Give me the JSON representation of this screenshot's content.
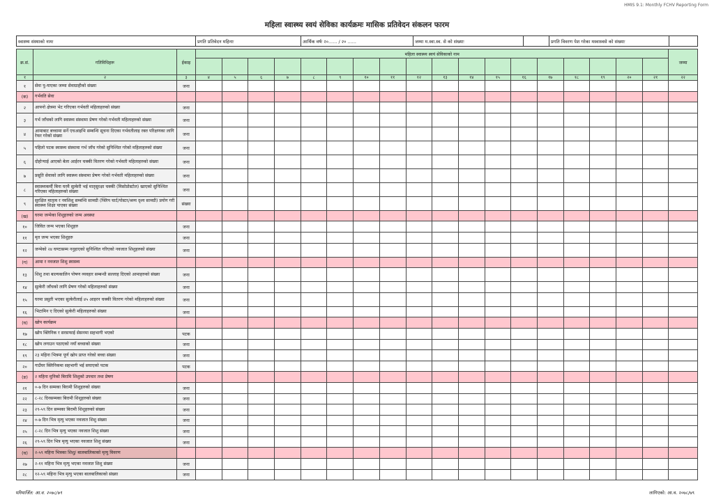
{
  "form_code": "HMIS 9.1: Monthly FCHV Reporting Form",
  "title": "महिला स्वास्थ्य स्वयं सेविका कार्यक्रमः मासिक प्रतिवेदन संकलन फारम",
  "info": {
    "facility_name": "स्वास्थ्य संस्थाको नामः",
    "report_month": "प्रगति प्रतिवेदन महिनाः",
    "fiscal_year": "आर्थिक वर्षः २०...... / २० ......",
    "total_fchv": "जम्मा म.स्वा.स्व. से को संख्याः",
    "reporting_fchv": "प्रगति विवरण पेश गरेका मस्वास्वसे को संख्याः"
  },
  "header": {
    "sn": "क्र.सं.",
    "activities": "गतिविधिहरू",
    "unit": "ईकाइ",
    "fchv_names": "महिला स्वास्थ्य स्वयं सेविकाको नाम",
    "total": "जम्मा",
    "col_numbers": [
      "१",
      "२",
      "३",
      "४",
      "५",
      "६",
      "७",
      "८",
      "९",
      "१०",
      "११",
      "१२",
      "१३",
      "१४",
      "१५",
      "१६",
      "१७",
      "१८",
      "१९",
      "२०",
      "२१",
      "२२"
    ]
  },
  "rows": [
    {
      "sn": "१",
      "activity": "सेवा पु-याएका जम्मा सेवाग्राहीको संख्या",
      "unit": "जना"
    },
    {
      "sn": "(क)",
      "activity": "गर्भवति सेवा",
      "section": true
    },
    {
      "sn": "२",
      "activity": "आफ्नो क्षेत्रमा भेट गरिएका गर्भवती महिलाहरुको संख्या",
      "unit": "जना"
    },
    {
      "sn": "३",
      "activity": "गर्भ जाँचको लागि स्वास्थ्य संस्थामा प्रेषण गरेको गर्भवती महिलाहरुको संख्या",
      "unit": "जना",
      "tall": true
    },
    {
      "sn": "४",
      "activity": "आमाबाट बच्चामा सर्ने एचआइभि सम्बन्धि सूचना दिएका गर्भवतीलाइ रक्त परिक्षणका लागि रेफर गरेको संख्या",
      "unit": "जना",
      "tall": true
    },
    {
      "sn": "५",
      "activity": "पहिलो पटक स्वास्थ्य संस्थामा गर्भ जाँच गरेको सुनिश्चित गरेको महिलाहरुको संख्या",
      "unit": "जना",
      "tall": true
    },
    {
      "sn": "६",
      "activity": "दोहोऱ्याई आएको बेला आईरन चक्की वितरण गरेको गर्भवती महिलाहरुको संख्या",
      "unit": "जना",
      "tall": true
    },
    {
      "sn": "७",
      "activity": "प्रसूति सेवाको लागि स्वास्थ्य संस्थामा प्रेषण गरेको गर्भवती महिलाहरुको संख्या",
      "unit": "जना",
      "tall": true
    },
    {
      "sn": "८",
      "activity": "स्वास्थ्यकर्मी बिना घरमै सुत्केरी भई मातृसुरक्षा चक्की (मिसोप्रोस्टोल) खाएको सुनिश्चित गरिएका महिलाहरुको संख्या",
      "unit": "जना",
      "tall": true
    },
    {
      "sn": "९",
      "activity": "सुरक्षित मातृत्व र नवशिशु सम्बन्धि सामग्री (फ्लिप चार्ट/पोस्टर/श्रव्य दृश्य सामग्री) प्रयोग गरी स्वास्थ्य शिक्षा पाएका संख्या",
      "unit": "संख्या",
      "tall": true
    },
    {
      "sn": "(ख)",
      "activity": "घरमा जन्मेका शिशुहरुको जन्म अवस्था",
      "section": true
    },
    {
      "sn": "१०",
      "activity": "जिवित जन्म भएका शिशुहरु",
      "unit": "जना"
    },
    {
      "sn": "११",
      "activity": "मृत जन्म भएका शिशुहरु",
      "unit": "जना"
    },
    {
      "sn": "१२",
      "activity": "जन्मेको २४ घण्टासम्म ननुहाएको सुनिश्चित गरिएको नवजात शिशुहरुको संख्या",
      "unit": "जना",
      "tall": true
    },
    {
      "sn": "(ग)",
      "activity": "आमा र नवजात शिशु स्वास्थ्य",
      "section": true
    },
    {
      "sn": "१३",
      "activity": "शिशु तथा बाल्यकालिन पोषण व्यवहार सम्बन्धी सल्लाह दिएको आमाहरुको संख्या",
      "unit": "जना",
      "tall": true
    },
    {
      "sn": "१४",
      "activity": "सुत्केरी जाँचको लागि प्रेषण गरेको महिलाहरुको संख्या",
      "unit": "जना"
    },
    {
      "sn": "१५",
      "activity": "घरमा प्रसुती भएका सुत्केरीलाई ४५ आइरन चक्की वितरण गरेको महिलाहरुको संख्या",
      "unit": "जना",
      "tall": true
    },
    {
      "sn": "१६",
      "activity": "भिटामिन ए दिएको सुत्केरी महिलाहरुको संख्या",
      "unit": "जना"
    },
    {
      "sn": "(घ)",
      "activity": "खोप कार्यक्रम",
      "section": true
    },
    {
      "sn": "१७",
      "activity": "खोप क्लिनिक र सरसफाई सेसनमा सहभागी भएको",
      "unit": "पटक"
    },
    {
      "sn": "१८",
      "activity": "खोप लगाउन पठाएको नयाँ बच्चाको संख्या",
      "unit": "जना"
    },
    {
      "sn": "१९",
      "activity": "२३ महिना भित्रमा पूर्ण खोप प्राप्त गरेको बच्चा संख्या",
      "unit": "जना"
    },
    {
      "sn": "२०",
      "activity": "गाउँघर क्लिनिकमा सहभागी भई सघाएको पटक",
      "unit": "पटक"
    },
    {
      "sn": "(ङ)",
      "activity": "२ महिना मुनिको बिरामि शिशुको उपचार तथा प्रेषण",
      "section": true
    },
    {
      "sn": "२१",
      "activity": "०-७ दिन सम्मका बिरामी शिशुहरुको संख्या",
      "unit": "जना"
    },
    {
      "sn": "२२",
      "activity": "८-२८ दिनसम्मका बिरामी शिशुहरुको संख्या",
      "unit": "जना"
    },
    {
      "sn": "२३",
      "activity": "२९-५९ दिन सम्मका बिरामी शिशुहरुको संख्या",
      "unit": "जना"
    },
    {
      "sn": "२४",
      "activity": "०-७ दिन भित्र मृत्यु भएका नवजात शिशु संख्या",
      "unit": "जना"
    },
    {
      "sn": "२५",
      "activity": "८-२८ दिन भित्र मृत्यु भएका नवजात शिशु संख्या",
      "unit": "जना"
    },
    {
      "sn": "२६",
      "activity": "२९-५९ दिन भित्र मृत्यु भएका नवजात शिशु संख्या",
      "unit": "जना"
    },
    {
      "sn": "(च)",
      "activity": "२-५९ महिना भित्रका शिशु/ बालबालिकाको मृत्यु विवरण",
      "section": true,
      "dark": true
    },
    {
      "sn": "२७",
      "activity": "२-११ महिना भित्र मृत्यु भएका नवजात शिशु संख्या",
      "unit": "जना"
    },
    {
      "sn": "२८",
      "activity": "१२-५९ महिना भित्र मृत्यु भएका बालबालिकाको संख्या",
      "unit": "जना"
    }
  ],
  "footer": {
    "revised": "परिमार्जित: आ.व. २०७८/७९",
    "effective": "लागिएको: आ.व. २०७८/७९"
  },
  "colors": {
    "header_green": "#c6efce",
    "section_pink": "#ffc7ce",
    "section_dark_pink": "#e6b8b7",
    "label_gray": "#f2f2f2"
  }
}
